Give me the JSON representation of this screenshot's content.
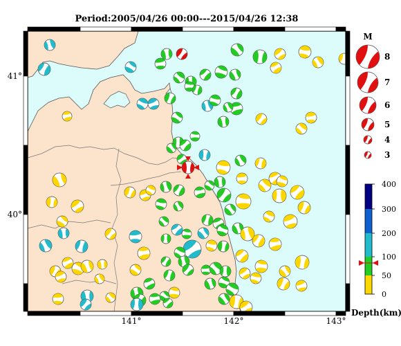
{
  "title": "Period:2005/04/26 00:00---2015/04/26 12:38",
  "lon_ticks": [
    "141°",
    "142°",
    "143°"
  ],
  "lat_ticks": [
    "41°",
    "40°"
  ],
  "magnitude_legend": {
    "title": "M",
    "items": [
      "8",
      "7",
      "6",
      "5",
      "4",
      "3"
    ]
  },
  "depth_scale": {
    "labels": [
      "400",
      "300",
      "200",
      "100",
      "50",
      "0"
    ],
    "unit": "Depth(km)",
    "colors": [
      "#ffd700",
      "#22cc22",
      "#22bbcc",
      "#1060d0",
      "#000080"
    ]
  },
  "map_colors": {
    "land": "#fbe3cc",
    "sea": "#dcfbfb",
    "highlight": "#e01010"
  }
}
